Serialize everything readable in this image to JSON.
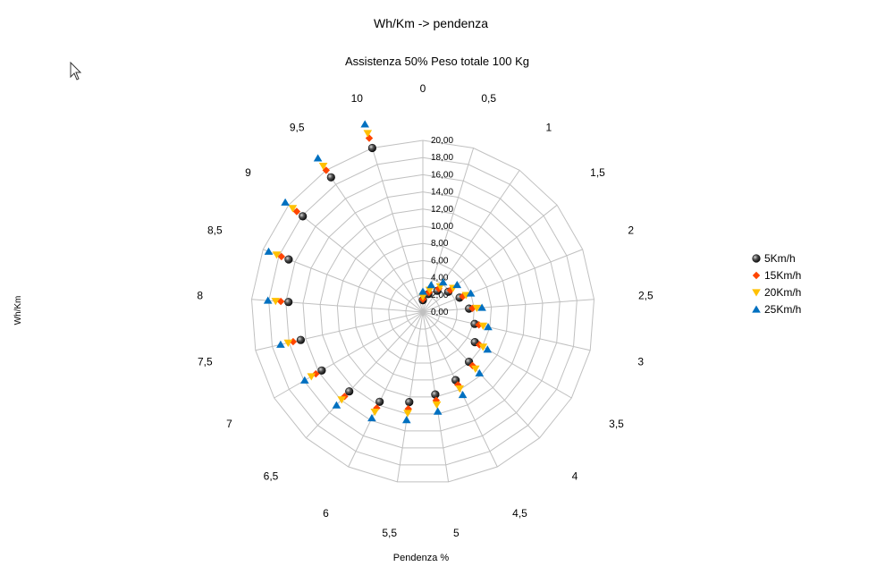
{
  "chart_data": {
    "type": "radar",
    "title": "Wh/Km -> pendenza",
    "subtitle": "Assistenza 50% Peso totale 100 Kg",
    "xlabel": "Pendenza %",
    "ylabel": "Wh/Km",
    "categories": [
      "0",
      "0,5",
      "1",
      "1,5",
      "2",
      "2,5",
      "3",
      "3,5",
      "4",
      "4,5",
      "5",
      "5,5",
      "6",
      "6,5",
      "7",
      "7,5",
      "8",
      "8,5",
      "9",
      "9,5",
      "10"
    ],
    "radial_ticks": [
      "0,00",
      "2,00",
      "4,00",
      "6,00",
      "8,00",
      "10,00",
      "12,00",
      "14,00",
      "16,00",
      "18,00",
      "20,00"
    ],
    "rlim": [
      0,
      20
    ],
    "grid": true,
    "legend_position": "right",
    "series": [
      {
        "name": "5Km/h",
        "marker": "sphere",
        "color": "#333333",
        "values": [
          1.4,
          2.2,
          3.0,
          3.8,
          4.6,
          5.4,
          6.2,
          7.0,
          7.9,
          8.8,
          9.7,
          10.6,
          11.6,
          12.6,
          13.6,
          14.6,
          15.7,
          16.8,
          17.9,
          19.0,
          20.0
        ]
      },
      {
        "name": "15Km/h",
        "marker": "diamond",
        "color": "#ff4500",
        "values": [
          1.5,
          2.4,
          3.3,
          4.1,
          5.0,
          5.8,
          6.7,
          7.6,
          8.5,
          9.4,
          10.4,
          11.4,
          12.4,
          13.4,
          14.4,
          15.5,
          16.6,
          17.7,
          18.8,
          20.0,
          21.2
        ]
      },
      {
        "name": "20Km/h",
        "marker": "triangle-down",
        "color": "#ffc000",
        "values": [
          1.8,
          2.7,
          3.6,
          4.5,
          5.4,
          6.3,
          7.2,
          8.1,
          9.0,
          9.9,
          10.9,
          11.9,
          12.9,
          13.9,
          15.0,
          16.1,
          17.2,
          18.3,
          19.4,
          20.6,
          21.8
        ]
      },
      {
        "name": "25Km/h",
        "marker": "triangle-up",
        "color": "#0070c0",
        "values": [
          2.4,
          3.3,
          4.2,
          5.1,
          6.0,
          6.9,
          7.8,
          8.7,
          9.7,
          10.7,
          11.7,
          12.7,
          13.7,
          14.8,
          15.9,
          17.0,
          18.1,
          19.3,
          20.5,
          21.7,
          22.9
        ]
      }
    ]
  },
  "icons": {
    "cursor": "mouse-pointer-icon"
  }
}
